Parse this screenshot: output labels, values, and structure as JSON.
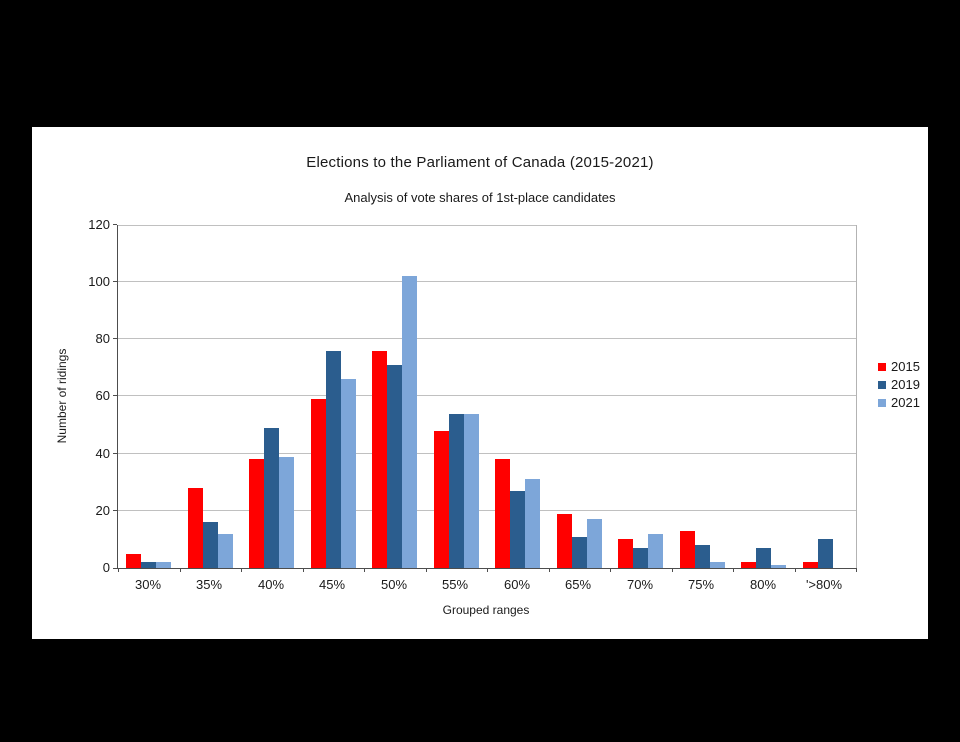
{
  "chart_data": {
    "type": "bar",
    "title": "Elections to the Parliament of Canada (2015-2021)",
    "subtitle": "Analysis of vote shares of 1st-place candidates",
    "xlabel": "Grouped ranges",
    "ylabel": "Number of ridings",
    "categories": [
      "30%",
      "35%",
      "40%",
      "45%",
      "50%",
      "55%",
      "60%",
      "65%",
      "70%",
      "75%",
      "80%",
      "'>80%"
    ],
    "series": [
      {
        "name": "2015",
        "color": "#ff0000",
        "values": [
          5,
          28,
          38,
          59,
          76,
          48,
          38,
          19,
          10,
          13,
          2,
          2
        ]
      },
      {
        "name": "2019",
        "color": "#2b5d8e",
        "values": [
          2,
          16,
          49,
          76,
          71,
          54,
          27,
          11,
          7,
          8,
          7,
          10
        ]
      },
      {
        "name": "2021",
        "color": "#7da6d9",
        "values": [
          2,
          12,
          39,
          66,
          102,
          54,
          31,
          17,
          12,
          2,
          1,
          0
        ]
      }
    ],
    "ylim": [
      0,
      120
    ],
    "ytick_step": 20,
    "grid": true,
    "legend_position": "right"
  },
  "colors": {
    "page_background": "#000000",
    "panel_background": "#ffffff",
    "gridline": "#c0c0c0",
    "axis_line": "#4d4d4d",
    "plot_border": "#b3b3b3",
    "text": "#1a1a1a"
  }
}
